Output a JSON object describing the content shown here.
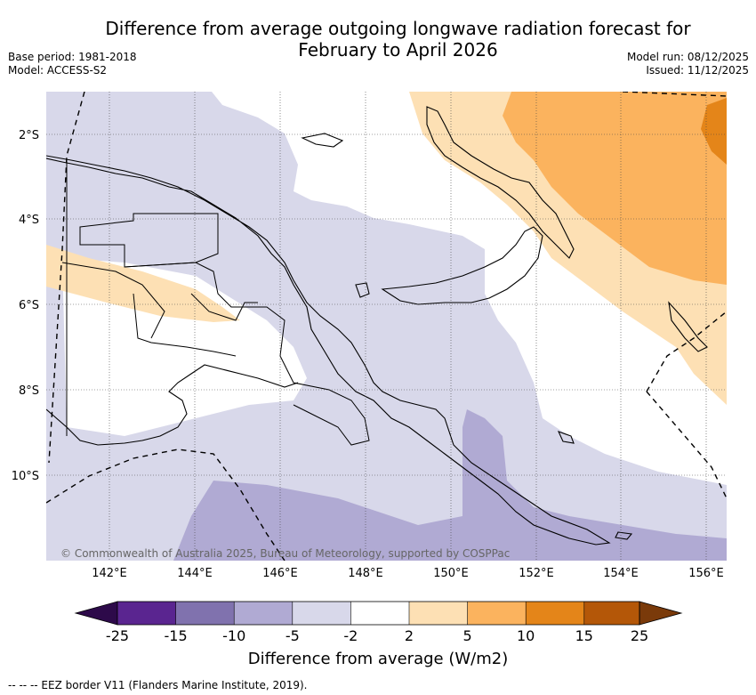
{
  "title_line1": "Difference from average outgoing longwave radiation forecast for",
  "title_line2": "February to April 2026",
  "base_period": "Base period: 1981-2018",
  "model": "Model: ACCESS-S2",
  "model_run": "Model run: 08/12/2025",
  "issued": "Issued: 11/12/2025",
  "copyright": "© Commonwealth of Australia 2025, Bureau of Meteorology, supported by COSPPac",
  "lat_labels": [
    "2°S",
    "4°S",
    "6°S",
    "8°S",
    "10°S"
  ],
  "lon_labels": [
    "142°E",
    "144°E",
    "146°E",
    "148°E",
    "150°E",
    "152°E",
    "154°E",
    "156°E"
  ],
  "colorbar": {
    "title": "Difference from average (W/m2)",
    "ticks": [
      "-25",
      "-15",
      "-10",
      "-5",
      "-2",
      "2",
      "5",
      "10",
      "15",
      "25"
    ],
    "colors": {
      "lt_m25": "#2d0a4a",
      "m25_m15": "#5a2590",
      "m15_m10": "#8072ae",
      "m10_m5": "#b0aad3",
      "m5_m2": "#d8d8ea",
      "m2_2": "#ffffff",
      "p2_5": "#fde0b4",
      "p5_10": "#fbb35e",
      "p10_15": "#e48519",
      "p15_25": "#b45708",
      "gt_25": "#7a3a0a"
    }
  },
  "footnote": "-- -- -- EEZ border V11 (Flanders Marine Institute, 2019)."
}
